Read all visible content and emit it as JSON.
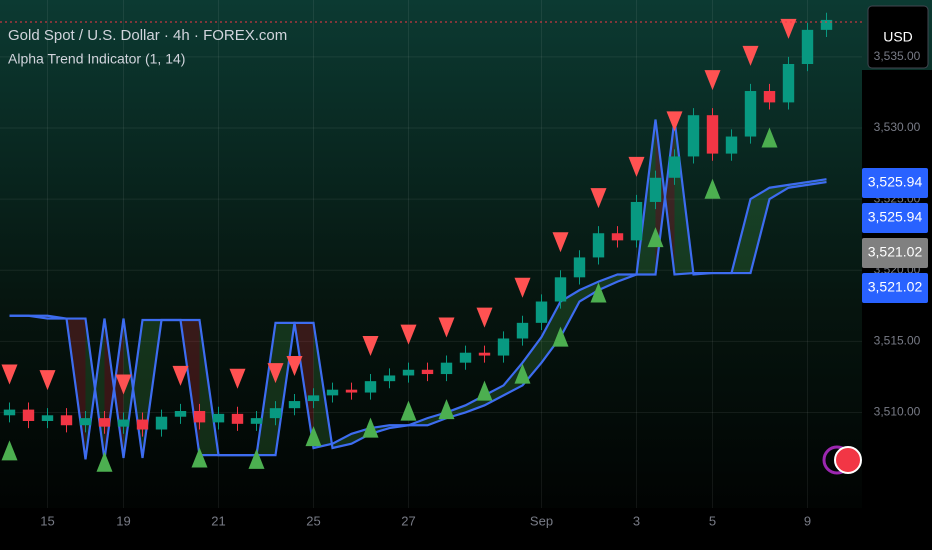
{
  "chart_data": {
    "type": "candlestick",
    "title": "Gold Spot / U.S. Dollar · 4h · FOREX.com",
    "subtitle": "Alpha Trend Indicator (1, 14)",
    "currency": "USD",
    "categories": [
      null,
      null,
      "15",
      null,
      null,
      null,
      "19",
      null,
      null,
      null,
      null,
      "21",
      null,
      null,
      null,
      null,
      "25",
      null,
      null,
      null,
      null,
      "27",
      null,
      null,
      null,
      null,
      null,
      null,
      "Sep",
      null,
      null,
      null,
      null,
      "3",
      null,
      null,
      null,
      "5",
      null,
      null,
      null,
      null,
      "9",
      null
    ],
    "open": [
      3509.8,
      3510.2,
      3509.4,
      3509.8,
      3509.1,
      3509.6,
      3509.0,
      3509.5,
      3508.8,
      3509.7,
      3510.1,
      3509.3,
      3509.9,
      3509.2,
      3509.6,
      3510.3,
      3510.8,
      3511.2,
      3511.6,
      3511.4,
      3512.2,
      3512.6,
      3513.0,
      3512.7,
      3513.5,
      3514.2,
      3514.0,
      3515.2,
      3516.3,
      3517.8,
      3519.5,
      3520.9,
      3522.6,
      3522.1,
      3524.8,
      3526.5,
      3528.0,
      3530.9,
      3528.2,
      3529.4,
      3532.6,
      3531.8,
      3534.5,
      3536.9
    ],
    "high": [
      3510.7,
      3510.7,
      3510.3,
      3510.3,
      3510.1,
      3510.1,
      3510.0,
      3510.0,
      3510.2,
      3510.6,
      3510.6,
      3510.4,
      3510.4,
      3510.1,
      3510.8,
      3511.3,
      3511.7,
      3512.1,
      3512.1,
      3512.7,
      3513.1,
      3513.5,
      3513.5,
      3514.0,
      3514.7,
      3514.7,
      3515.7,
      3516.8,
      3518.3,
      3520.0,
      3521.4,
      3523.1,
      3523.1,
      3525.3,
      3527.0,
      3528.5,
      3531.4,
      3531.4,
      3529.9,
      3533.1,
      3533.1,
      3535.0,
      3537.4,
      3538.1
    ],
    "low": [
      3509.3,
      3508.9,
      3508.9,
      3508.6,
      3508.6,
      3508.5,
      3508.5,
      3508.3,
      3508.3,
      3509.2,
      3508.8,
      3508.8,
      3508.7,
      3508.7,
      3509.1,
      3509.8,
      3510.3,
      3510.7,
      3510.9,
      3510.9,
      3511.7,
      3512.1,
      3512.2,
      3512.2,
      3513.0,
      3513.5,
      3513.5,
      3514.7,
      3515.8,
      3517.3,
      3519.0,
      3520.4,
      3521.6,
      3521.6,
      3524.3,
      3526.0,
      3527.5,
      3527.7,
      3527.7,
      3528.9,
      3531.3,
      3531.3,
      3534.0,
      3536.4
    ],
    "close": [
      3510.2,
      3509.4,
      3509.8,
      3509.1,
      3509.6,
      3509.0,
      3509.5,
      3508.8,
      3509.7,
      3510.1,
      3509.3,
      3509.9,
      3509.2,
      3509.6,
      3510.3,
      3510.8,
      3511.2,
      3511.6,
      3511.4,
      3512.2,
      3512.6,
      3513.0,
      3512.7,
      3513.5,
      3514.2,
      3514.0,
      3515.2,
      3516.3,
      3517.8,
      3519.5,
      3520.9,
      3522.6,
      3522.1,
      3524.8,
      3526.5,
      3528.0,
      3530.9,
      3528.2,
      3529.4,
      3532.6,
      3531.8,
      3534.5,
      3536.9,
      3537.6
    ],
    "up_color": "#089981",
    "down_color": "#f23645",
    "trend_lines": [
      {
        "color": "#3d6cf0",
        "values": [
          3516.8,
          3516.8,
          3516.6,
          3516.6,
          3506.7,
          3516.6,
          3506.8,
          3516.5,
          3516.5,
          3516.5,
          3507.0,
          3507.0,
          3507.0,
          3507.0,
          3516.3,
          3516.3,
          3507.5,
          3507.8,
          3508.5,
          3508.9,
          3509.1,
          3509.1,
          3509.6,
          3510.0,
          3510.5,
          3511.2,
          3511.9,
          3513.5,
          3515.3,
          3517.8,
          3518.6,
          3519.2,
          3519.7,
          3519.7,
          3530.6,
          3519.7,
          3519.8,
          3519.8,
          3519.8,
          3525.0,
          3525.8,
          3526.0,
          3526.2,
          3526.4
        ]
      },
      {
        "color": "#3d6cf0",
        "values": [
          3516.8,
          3516.8,
          3516.8,
          3516.6,
          3516.6,
          3506.7,
          3516.6,
          3506.8,
          3516.5,
          3516.5,
          3516.5,
          3507.0,
          3507.0,
          3507.0,
          3507.0,
          3516.3,
          3516.3,
          3507.5,
          3507.8,
          3508.5,
          3508.9,
          3509.1,
          3509.1,
          3509.6,
          3510.0,
          3510.5,
          3511.2,
          3511.9,
          3513.5,
          3515.3,
          3517.8,
          3518.6,
          3519.2,
          3519.7,
          3519.7,
          3530.6,
          3519.7,
          3519.8,
          3519.8,
          3519.8,
          3525.0,
          3525.8,
          3526.0,
          3526.2
        ]
      }
    ],
    "buy_signals": [
      0,
      5,
      10,
      13,
      16,
      19,
      21,
      23,
      25,
      27,
      29,
      31,
      34,
      37,
      40
    ],
    "sell_signals": [
      0,
      2,
      6,
      9,
      12,
      14,
      15,
      19,
      21,
      23,
      25,
      27,
      29,
      31,
      33,
      35,
      37,
      39,
      41
    ],
    "buy_color": "#4caf50",
    "sell_color": "#ff5252",
    "ylim": [
      3503,
      3539
    ],
    "yticks": [
      {
        "value": 3510,
        "label": "3,510.00"
      },
      {
        "value": 3515,
        "label": "3,515.00"
      },
      {
        "value": 3520,
        "label": "3,520.00"
      },
      {
        "value": 3525,
        "label": "3,525.00"
      },
      {
        "value": 3530,
        "label": "3,530.00"
      },
      {
        "value": 3535,
        "label": "3,535.00"
      }
    ],
    "price_labels": [
      {
        "value": 3525.94,
        "label": "3,525.94",
        "color": "#2962ff"
      },
      {
        "value": 3525.94,
        "label": "3,525.94",
        "color": "#2962ff"
      },
      {
        "value": 3521.02,
        "label": "3,521.02",
        "color": "#808080"
      },
      {
        "value": 3521.02,
        "label": "3,521.02",
        "color": "#2962ff"
      }
    ],
    "grid": true
  }
}
